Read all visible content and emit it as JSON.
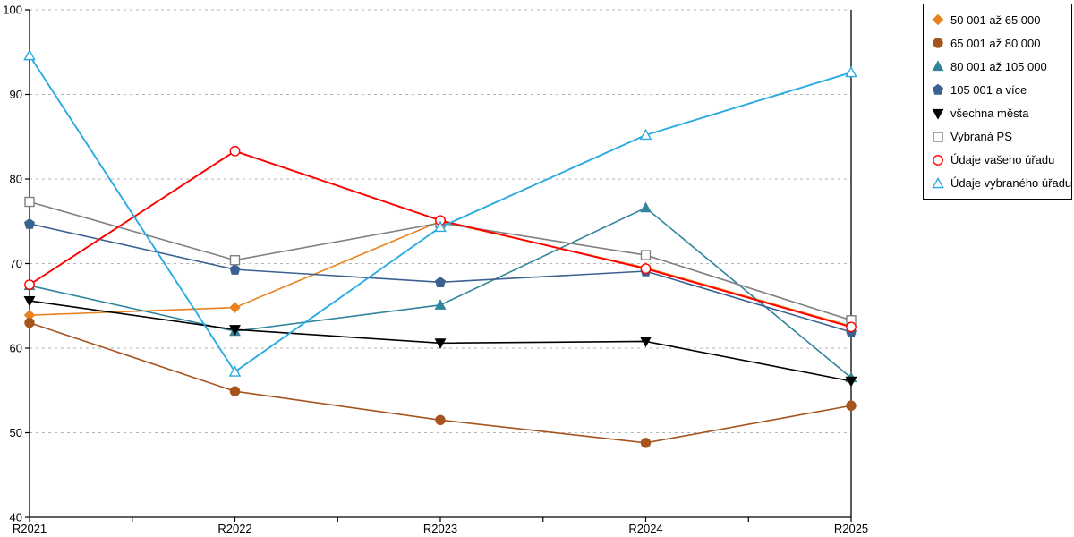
{
  "chart_data": {
    "type": "line",
    "title": "",
    "xlabel": "",
    "ylabel": "",
    "categories": [
      "R2021",
      "R2022",
      "R2023",
      "R2024",
      "R2025"
    ],
    "y_ticks": [
      40,
      50,
      60,
      70,
      80,
      90,
      100
    ],
    "ylim": [
      40,
      100
    ],
    "grid": "horizontal-dashed",
    "legend_position": "top-right",
    "series": [
      {
        "name": "50 001 až 65 000",
        "color": "#E8811E",
        "marker": "diamond",
        "style": "filled",
        "values": [
          63.9,
          64.8,
          75.0,
          69.5,
          62.6
        ]
      },
      {
        "name": "65 001 až 80 000",
        "color": "#A5541E",
        "marker": "circle",
        "style": "filled",
        "values": [
          63.0,
          54.9,
          51.5,
          48.8,
          53.2
        ]
      },
      {
        "name": "80 001 až 105 000",
        "color": "#31859C",
        "marker": "triangle-up",
        "style": "filled",
        "values": [
          67.4,
          62.0,
          65.1,
          76.6,
          56.5
        ]
      },
      {
        "name": "105 001 a více",
        "color": "#3A6191",
        "marker": "pentagon",
        "style": "filled",
        "values": [
          74.7,
          69.3,
          67.8,
          69.1,
          61.9
        ]
      },
      {
        "name": "všechna města",
        "color": "#000000",
        "marker": "triangle-down",
        "style": "filled",
        "values": [
          65.6,
          62.2,
          60.6,
          60.8,
          56.1
        ]
      },
      {
        "name": "Vybraná PS",
        "color": "#808080",
        "marker": "square",
        "style": "open",
        "values": [
          77.3,
          70.4,
          74.8,
          71.0,
          63.3
        ]
      },
      {
        "name": "Údaje vašeho úřadu",
        "color": "#FF0000",
        "marker": "circle",
        "style": "open",
        "values": [
          67.5,
          83.3,
          75.1,
          69.4,
          62.5
        ]
      },
      {
        "name": "Údaje vybraného úřadu",
        "color": "#29ABE2",
        "marker": "triangle-up",
        "style": "open",
        "values": [
          94.6,
          57.2,
          74.3,
          85.2,
          92.6
        ]
      }
    ]
  },
  "colors": {
    "axis": "#000000",
    "grid": "#b3b3b3",
    "background": "#ffffff",
    "tick_label": "#000000"
  }
}
